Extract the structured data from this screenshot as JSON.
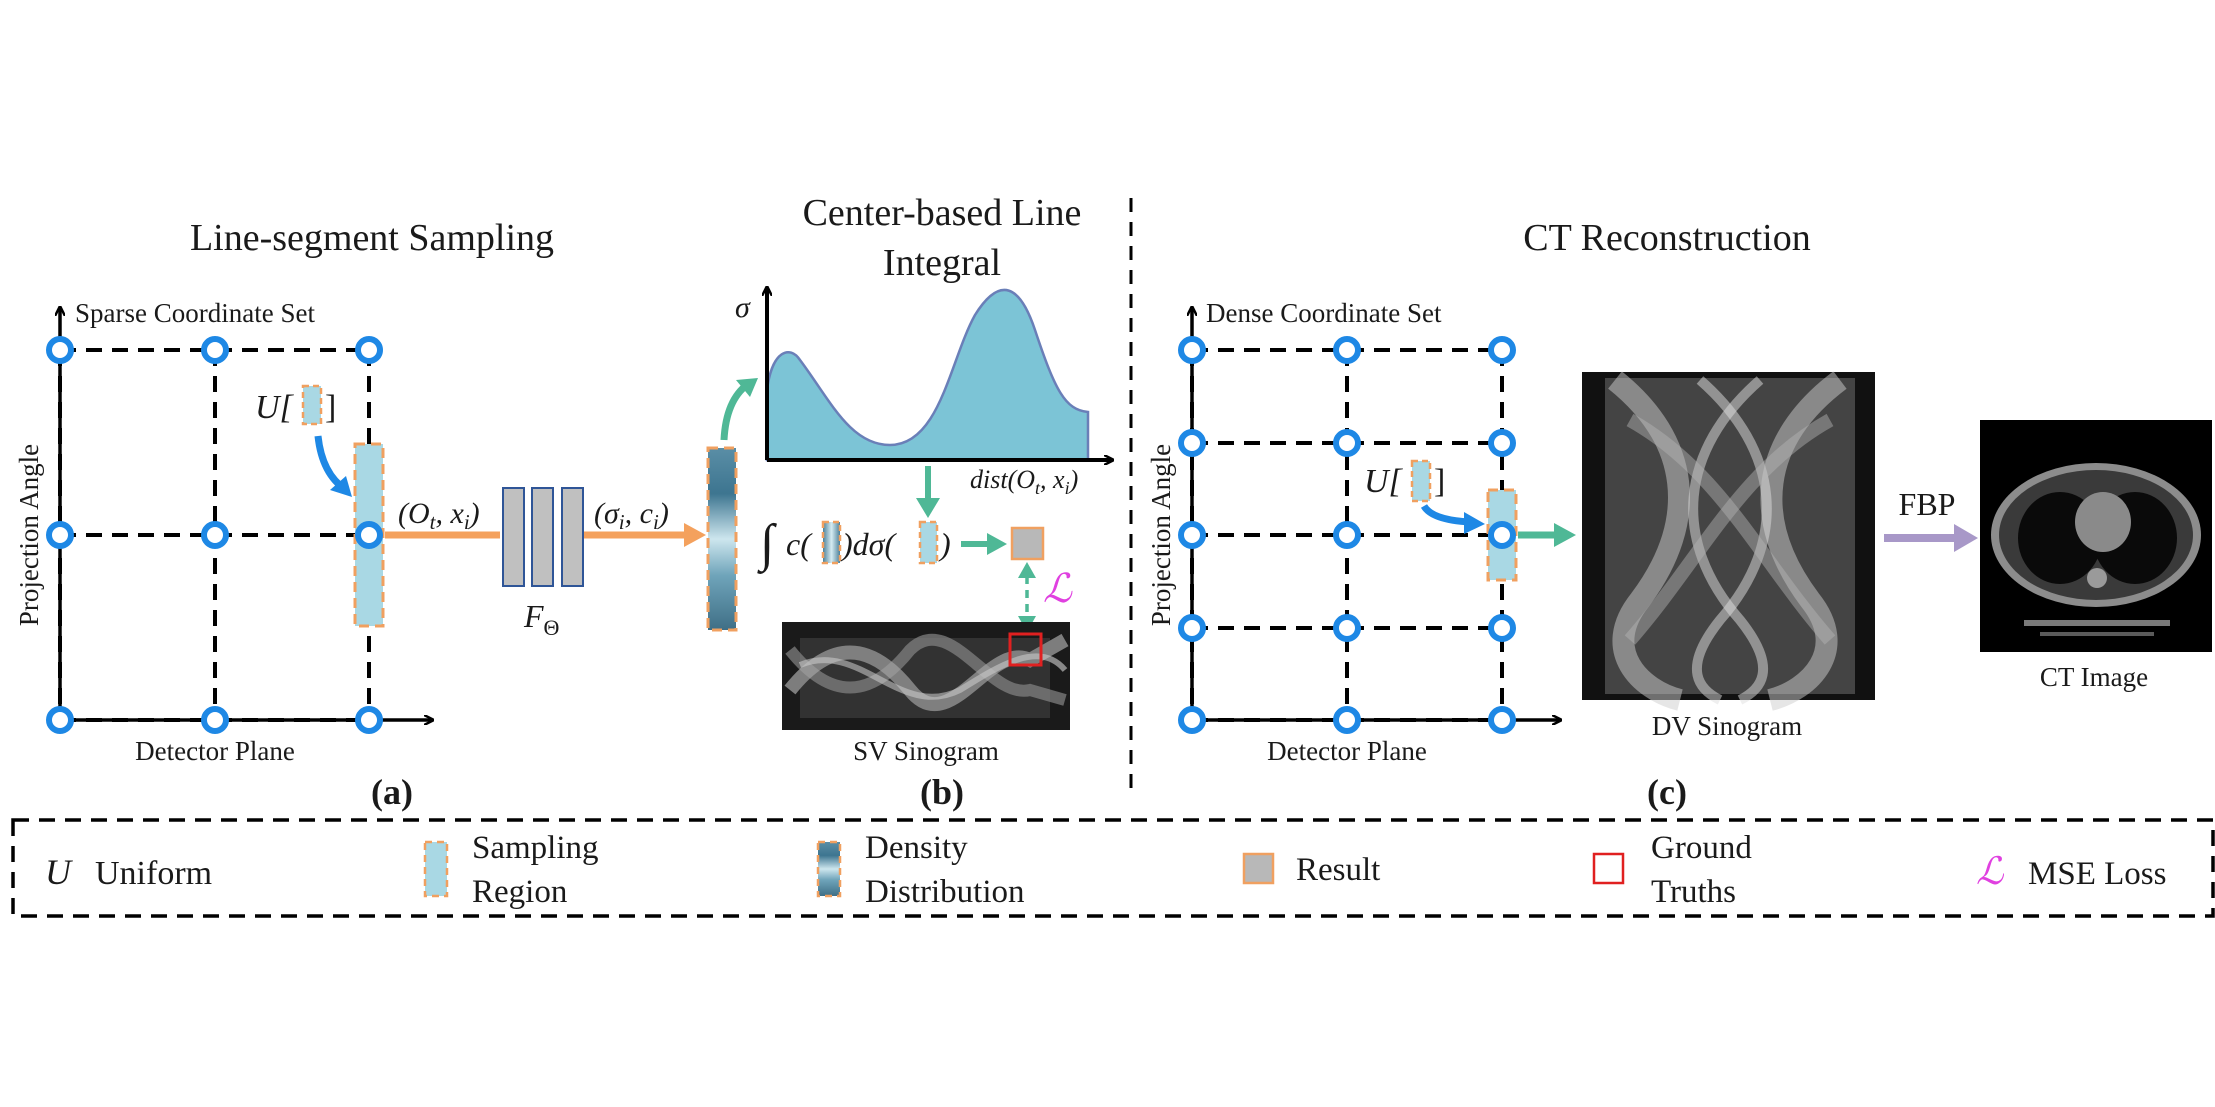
{
  "panel_a": {
    "title": "Line-segment Sampling",
    "grid_label": "Sparse Coordinate Set",
    "y_axis_label": "Projection Angle",
    "x_axis_label": "Detector Plane",
    "uniform_label": "U[",
    "uniform_close": "]",
    "input_label": "(O",
    "input_sub_t": "t",
    "input_mid": ", x",
    "input_sub_i": "i",
    "input_close": ")",
    "output_label": "(σ",
    "output_sub_i": "i",
    "output_mid": ", c",
    "output_sub_i2": "i",
    "output_close": ")",
    "network_label": "F",
    "network_sub": "Θ",
    "caption": "(a)"
  },
  "panel_b": {
    "title_line1": "Center-based Line",
    "title_line2": "Integral",
    "y_axis_label": "σ",
    "x_axis_label": "dist(O",
    "x_axis_sub_t": "t",
    "x_axis_mid": ", x",
    "x_axis_sub_i": "i",
    "x_axis_close": ")",
    "integral_symbol": "∫",
    "integral_c": "c(",
    "integral_mid": ")dσ(",
    "integral_close": ")",
    "loss_symbol": "ℒ",
    "sinogram_label": "SV Sinogram",
    "caption": "(b)"
  },
  "panel_c": {
    "title": "CT Reconstruction",
    "grid_label": "Dense Coordinate Set",
    "y_axis_label": "Projection Angle",
    "x_axis_label": "Detector Plane",
    "uniform_label": "U[",
    "uniform_close": "]",
    "sinogram_label": "DV Sinogram",
    "fbp_label": "FBP",
    "ct_label": "CT Image",
    "caption": "(c)"
  },
  "legend": {
    "uniform_symbol": "U",
    "uniform_text": "Uniform",
    "sampling_line1": "Sampling",
    "sampling_line2": "Region",
    "density_line1": "Density",
    "density_line2": "Distribution",
    "result_text": "Result",
    "ground_line1": "Ground",
    "ground_line2": "Truths",
    "loss_symbol": "ℒ",
    "loss_text": "MSE Loss"
  },
  "colors": {
    "node_blue": "#1e88e5",
    "arrow_orange": "#f4a15d",
    "arrow_teal": "#4fb896",
    "arrow_purple": "#a898c8",
    "region_fill": "#a9d8e4",
    "region_border": "#f0a060",
    "curve_fill": "#7cc4d6",
    "curve_stroke": "#6a7fb8",
    "network_fill": "#c0c0c0",
    "network_stroke": "#2f5597",
    "ground_truth_red": "#e02020",
    "loss_magenta": "#e040e0"
  }
}
